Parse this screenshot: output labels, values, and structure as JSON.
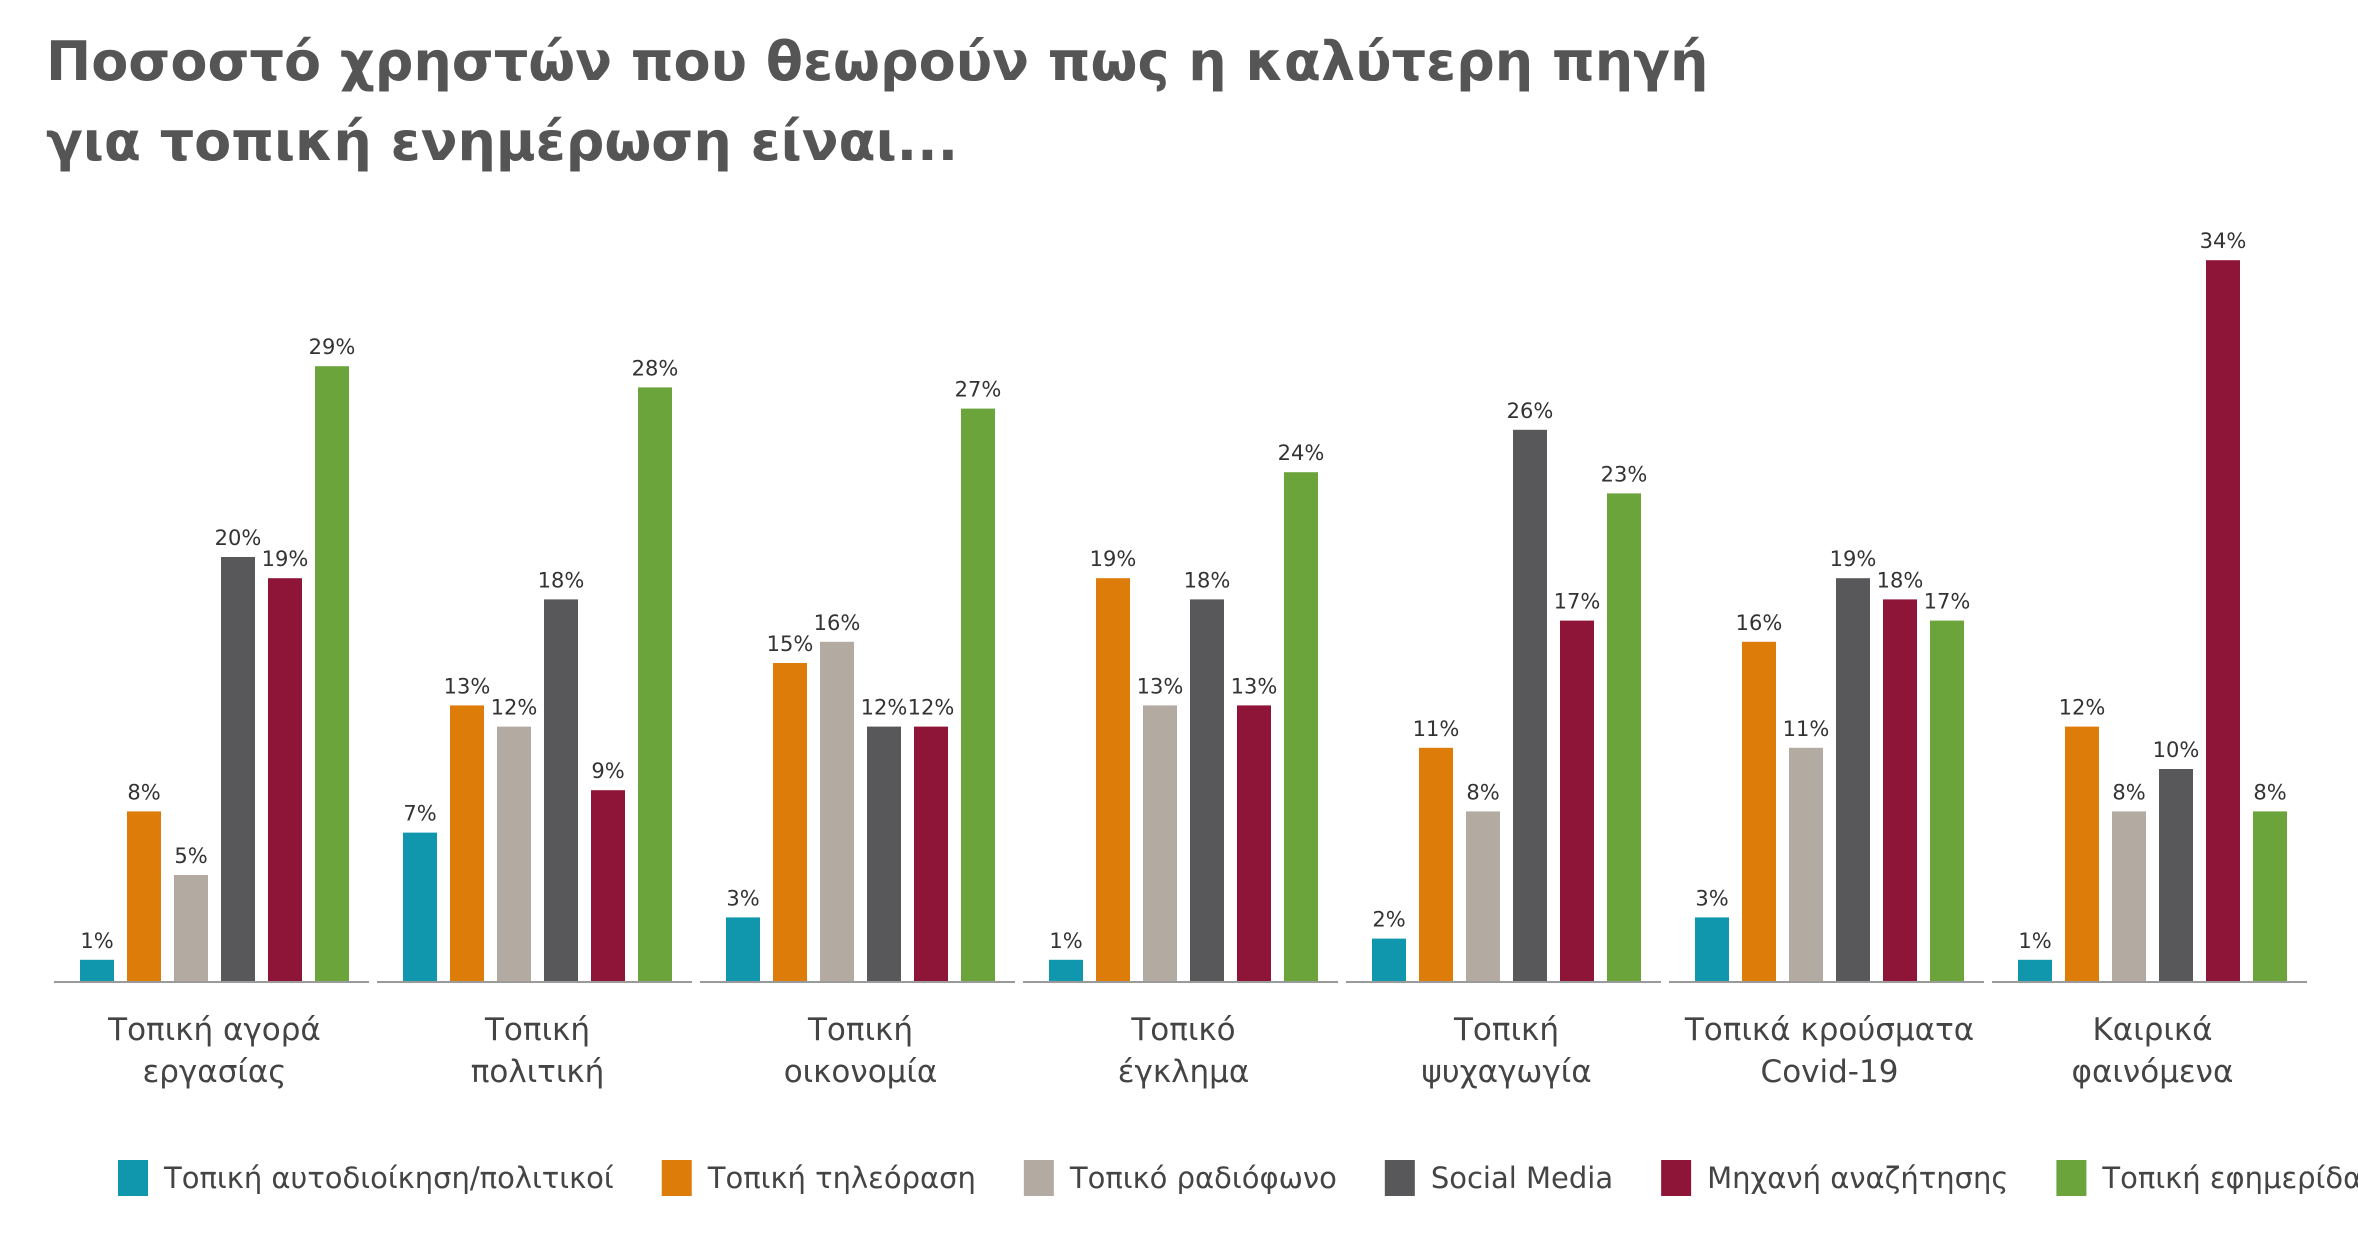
{
  "title_lines": [
    "Ποσοστό χρηστών που θεωρούν πως η καλύτερη πηγή",
    "για τοπική ενημέρωση είναι..."
  ],
  "chart_data": {
    "type": "bar",
    "title": "Ποσοστό χρηστών που θεωρούν πως η καλύτερη πηγή για τοπική ενημέρωση είναι...",
    "xlabel": "",
    "ylabel": "",
    "ylim": [
      0,
      36
    ],
    "grid": false,
    "legend_position": "bottom",
    "value_suffix": "%",
    "categories": [
      [
        "Τοπική αγορά",
        "εργασίας"
      ],
      [
        "Τοπική",
        "πολιτική"
      ],
      [
        "Τοπική",
        "οικονομία"
      ],
      [
        "Τοπικό",
        "έγκλημα"
      ],
      [
        "Τοπική",
        "ψυχαγωγία"
      ],
      [
        "Τοπικά κρούσματα",
        "Covid-19"
      ],
      [
        "Καιρικά",
        "φαινόμενα"
      ]
    ],
    "series": [
      {
        "name": "Τοπική αυτοδιοίκηση/πολιτικοί",
        "color": "#1097AE",
        "values": [
          1,
          7,
          3,
          1,
          2,
          3,
          1
        ]
      },
      {
        "name": "Τοπική τηλεόραση",
        "color": "#DE7C0A",
        "values": [
          8,
          13,
          15,
          19,
          11,
          16,
          12
        ]
      },
      {
        "name": "Τοπικό ραδιόφωνο",
        "color": "#B3ABA2",
        "values": [
          5,
          12,
          16,
          13,
          8,
          11,
          8
        ]
      },
      {
        "name": "Social Media",
        "color": "#58585A",
        "values": [
          20,
          18,
          12,
          18,
          26,
          19,
          10
        ]
      },
      {
        "name": "Μηχανή αναζήτησης",
        "color": "#8E1538",
        "values": [
          19,
          9,
          12,
          13,
          17,
          18,
          34
        ]
      },
      {
        "name": "Τοπική εφημερίδα",
        "color": "#6AA43B",
        "values": [
          29,
          28,
          27,
          24,
          23,
          17,
          8
        ]
      }
    ]
  }
}
